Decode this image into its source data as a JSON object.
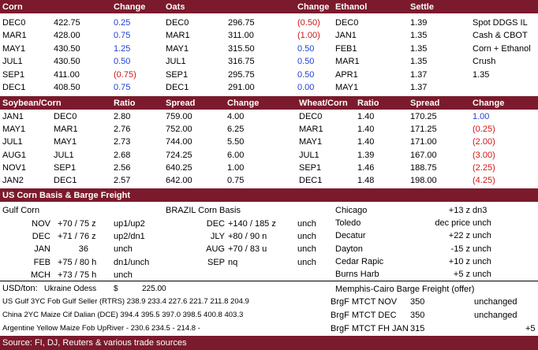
{
  "colors": {
    "band": "#7b1a2c",
    "positive": "#1f3fd1",
    "negative": "#d01515"
  },
  "corn_section": {
    "headers": {
      "corn": "Corn",
      "change": "Change",
      "oats": "Oats",
      "oats_change": "Change",
      "ethanol": "Ethanol",
      "settle": "Settle"
    },
    "rows": [
      {
        "c_month": "DEC0",
        "c_price": "422.75",
        "c_change": "0.25",
        "o_month": "DEC0",
        "o_price": "296.75",
        "o_change": "(0.50)",
        "e_month": "DEC0",
        "e_settle": "1.39",
        "note": "Spot DDGS IL"
      },
      {
        "c_month": "MAR1",
        "c_price": "428.00",
        "c_change": "0.75",
        "o_month": "MAR1",
        "o_price": "311.00",
        "o_change": "(1.00)",
        "e_month": "JAN1",
        "e_settle": "1.35",
        "note": "Cash & CBOT"
      },
      {
        "c_month": "MAY1",
        "c_price": "430.50",
        "c_change": "1.25",
        "o_month": "MAY1",
        "o_price": "315.50",
        "o_change": "0.50",
        "e_month": "FEB1",
        "e_settle": "1.35",
        "note": "Corn + Ethanol"
      },
      {
        "c_month": "JUL1",
        "c_price": "430.50",
        "c_change": "0.50",
        "o_month": "JUL1",
        "o_price": "316.75",
        "o_change": "0.50",
        "e_month": "MAR1",
        "e_settle": "1.35",
        "note": "Crush"
      },
      {
        "c_month": "SEP1",
        "c_price": "411.00",
        "c_change": "(0.75)",
        "o_month": "SEP1",
        "o_price": "295.75",
        "o_change": "0.50",
        "e_month": "APR1",
        "e_settle": "1.37",
        "note": "1.35"
      },
      {
        "c_month": "DEC1",
        "c_price": "408.50",
        "c_change": "0.75",
        "o_month": "DEC1",
        "o_price": "291.00",
        "o_change": "0.00",
        "e_month": "MAY1",
        "e_settle": "1.37",
        "note": ""
      }
    ]
  },
  "spread_section": {
    "headers": {
      "soy_corn": "Soybean/Corn",
      "ratio": "Ratio",
      "spread": "Spread",
      "change": "Change",
      "wheat_corn": "Wheat/Corn",
      "ratio2": "Ratio",
      "spread2": "Spread",
      "change2": "Change"
    },
    "rows": [
      {
        "a": "JAN1",
        "b": "DEC0",
        "ratio": "2.80",
        "spread": "759.00",
        "change": "4.00",
        "w": "DEC0",
        "w_ratio": "1.40",
        "w_spread": "170.25",
        "w_change": "1.00"
      },
      {
        "a": "MAY1",
        "b": "MAR1",
        "ratio": "2.76",
        "spread": "752.00",
        "change": "6.25",
        "w": "MAR1",
        "w_ratio": "1.40",
        "w_spread": "171.25",
        "w_change": "(0.25)"
      },
      {
        "a": "JUL1",
        "b": "MAY1",
        "ratio": "2.73",
        "spread": "744.00",
        "change": "5.50",
        "w": "MAY1",
        "w_ratio": "1.40",
        "w_spread": "171.00",
        "w_change": "(2.00)"
      },
      {
        "a": "AUG1",
        "b": "JUL1",
        "ratio": "2.68",
        "spread": "724.25",
        "change": "6.00",
        "w": "JUL1",
        "w_ratio": "1.39",
        "w_spread": "167.00",
        "w_change": "(3.00)"
      },
      {
        "a": "NOV1",
        "b": "SEP1",
        "ratio": "2.56",
        "spread": "640.25",
        "change": "1.00",
        "w": "SEP1",
        "w_ratio": "1.46",
        "w_spread": "188.75",
        "w_change": "(2.25)"
      },
      {
        "a": "JAN2",
        "b": "DEC1",
        "ratio": "2.57",
        "spread": "642.00",
        "change": "0.75",
        "w": "DEC1",
        "w_ratio": "1.48",
        "w_spread": "198.00",
        "w_change": "(4.25)"
      }
    ]
  },
  "basis_section": {
    "title": "US Corn Basis & Barge Freight",
    "gulf_title": "Gulf Corn",
    "brazil_title": "BRAZIL Corn Basis",
    "gulf_rows": [
      {
        "month": "NOV",
        "value": "+70 / 75 z",
        "note": "up1/up2"
      },
      {
        "month": "DEC",
        "value": "+71 / 76 z",
        "note": "up2/dn1"
      },
      {
        "month": "JAN",
        "value": "36",
        "note": "unch"
      },
      {
        "month": "FEB",
        "value": "+75 / 80 h",
        "note": "dn1/unch"
      },
      {
        "month": "MCH",
        "value": "+73 / 75 h",
        "note": "unch"
      }
    ],
    "brazil_rows": [
      {
        "month": "DEC",
        "value": "+140 / 185 z",
        "note": "unch"
      },
      {
        "month": "JLY",
        "value": "+80 / 90 n",
        "note": "unch"
      },
      {
        "month": "AUG",
        "value": "+70 / 83 u",
        "note": "unch"
      },
      {
        "month": "SEP",
        "value": "nq",
        "note": "unch"
      }
    ],
    "city_rows": [
      {
        "city": "Chicago",
        "value": "+13 z",
        "note": "dn3"
      },
      {
        "city": "Toledo",
        "value": "dec price",
        "note": "unch"
      },
      {
        "city": "Decatur",
        "value": "+22 z",
        "note": "unch"
      },
      {
        "city": "Dayton",
        "value": "-15 z",
        "note": "unch"
      },
      {
        "city": "Cedar Rapic",
        "value": "+10 z",
        "note": "unch"
      },
      {
        "city": "Burns Harb",
        "value": "+5 z",
        "note": "unch"
      }
    ]
  },
  "usd_section": {
    "usd_label": "USD/ton:",
    "ukraine_label": "Ukraine Odess",
    "ukraine_currency": "$",
    "ukraine_value": "225.00",
    "rows": [
      {
        "label": "US Gulf  3YC Fob Gulf Seller (RTRS) 238.9  233.4  227.6  221.7  211.8  204.9"
      },
      {
        "label": "China   2YC Maize Cif Dalian (DCE) 394.4  395.5  397.0  398.5  400.8  403.3"
      },
      {
        "label": "Argentine  Yellow Maize Fob UpRiver   -  230.6  234.5   -  214.8   -"
      }
    ],
    "barge_title": "Memphis-Cairo Barge Freight (offer)",
    "barge_rows": [
      {
        "label": "BrgF MTCT NOV",
        "value": "350",
        "note": "unchanged",
        "extra": ""
      },
      {
        "label": "BrgF MTCT DEC",
        "value": "350",
        "note": "unchanged",
        "extra": ""
      },
      {
        "label": "BrgF MTCT FH JAN",
        "value": "315",
        "note": "",
        "extra": "+5"
      }
    ]
  },
  "footer": {
    "source": "Source: FI, DJ, Reuters & various trade sources"
  }
}
